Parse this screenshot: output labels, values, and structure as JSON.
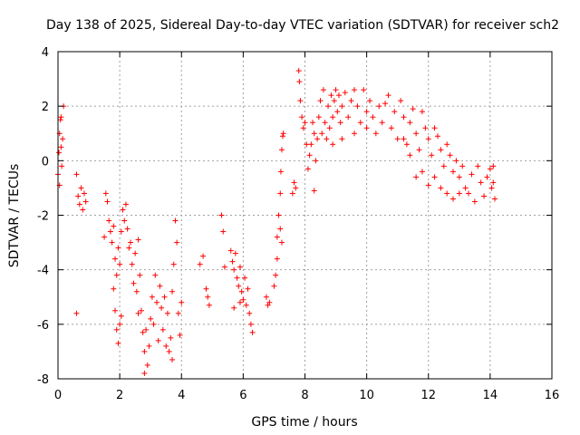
{
  "chart_data": {
    "type": "scatter",
    "title": "Day 138 of 2025, Sidereal Day-to-day VTEC variation (SDTVAR) for receiver sch2",
    "xlabel": "GPS time / hours",
    "ylabel": "SDTVAR / TECUs",
    "xlim": [
      0,
      16
    ],
    "ylim": [
      -8,
      4
    ],
    "xticks": [
      "0",
      "2",
      "4",
      "6",
      "8",
      "10",
      "12",
      "14",
      "16"
    ],
    "yticks": [
      "4",
      "2",
      "0",
      "-2",
      "-4",
      "-6",
      "-8"
    ],
    "grid": true,
    "marker": "+",
    "color": "#ff0000",
    "series": [
      {
        "name": "sch2",
        "points": [
          [
            0.0,
            -0.5
          ],
          [
            0.03,
            0.3
          ],
          [
            0.05,
            1.0
          ],
          [
            0.08,
            1.5
          ],
          [
            0.1,
            0.5
          ],
          [
            0.12,
            -0.2
          ],
          [
            0.15,
            0.8
          ],
          [
            0.18,
            2.0
          ],
          [
            0.05,
            -0.9
          ],
          [
            0.1,
            1.6
          ],
          [
            0.6,
            -0.5
          ],
          [
            0.65,
            -1.3
          ],
          [
            0.7,
            -1.6
          ],
          [
            0.75,
            -1.0
          ],
          [
            0.8,
            -1.8
          ],
          [
            0.85,
            -1.2
          ],
          [
            0.9,
            -1.5
          ],
          [
            0.6,
            -5.6
          ],
          [
            1.5,
            -2.8
          ],
          [
            1.55,
            -1.2
          ],
          [
            1.6,
            -1.5
          ],
          [
            1.65,
            -2.2
          ],
          [
            1.7,
            -2.6
          ],
          [
            1.75,
            -3.0
          ],
          [
            1.8,
            -2.4
          ],
          [
            1.85,
            -3.6
          ],
          [
            1.9,
            -4.2
          ],
          [
            1.95,
            -3.2
          ],
          [
            1.8,
            -4.7
          ],
          [
            1.85,
            -5.5
          ],
          [
            1.9,
            -6.2
          ],
          [
            1.95,
            -6.7
          ],
          [
            2.0,
            -6.0
          ],
          [
            2.05,
            -5.7
          ],
          [
            2.0,
            -3.8
          ],
          [
            2.05,
            -2.6
          ],
          [
            2.1,
            -1.8
          ],
          [
            2.15,
            -2.2
          ],
          [
            2.2,
            -1.6
          ],
          [
            2.25,
            -2.5
          ],
          [
            2.3,
            -3.2
          ],
          [
            2.35,
            -3.0
          ],
          [
            2.4,
            -3.8
          ],
          [
            2.45,
            -4.5
          ],
          [
            2.5,
            -3.4
          ],
          [
            2.55,
            -4.8
          ],
          [
            2.6,
            -5.6
          ],
          [
            2.65,
            -4.2
          ],
          [
            2.7,
            -5.5
          ],
          [
            2.75,
            -6.3
          ],
          [
            2.8,
            -7.0
          ],
          [
            2.85,
            -6.2
          ],
          [
            2.9,
            -7.5
          ],
          [
            2.95,
            -6.8
          ],
          [
            3.0,
            -5.8
          ],
          [
            3.05,
            -5.0
          ],
          [
            3.1,
            -6.0
          ],
          [
            3.15,
            -4.2
          ],
          [
            3.2,
            -5.2
          ],
          [
            3.25,
            -6.6
          ],
          [
            3.3,
            -4.6
          ],
          [
            3.35,
            -5.4
          ],
          [
            3.4,
            -6.2
          ],
          [
            3.45,
            -5.0
          ],
          [
            3.5,
            -6.8
          ],
          [
            3.55,
            -5.6
          ],
          [
            3.6,
            -7.0
          ],
          [
            3.65,
            -6.5
          ],
          [
            3.7,
            -4.8
          ],
          [
            3.75,
            -3.8
          ],
          [
            3.8,
            -2.2
          ],
          [
            3.85,
            -3.0
          ],
          [
            3.9,
            -5.6
          ],
          [
            3.95,
            -6.4
          ],
          [
            4.0,
            -5.2
          ],
          [
            2.8,
            -7.8
          ],
          [
            3.7,
            -7.3
          ],
          [
            2.6,
            -2.9
          ],
          [
            4.6,
            -3.8
          ],
          [
            4.7,
            -3.5
          ],
          [
            4.8,
            -4.7
          ],
          [
            4.85,
            -5.0
          ],
          [
            4.9,
            -5.3
          ],
          [
            5.3,
            -2.0
          ],
          [
            5.35,
            -2.6
          ],
          [
            5.4,
            -3.9
          ],
          [
            5.6,
            -3.3
          ],
          [
            5.65,
            -3.7
          ],
          [
            5.7,
            -4.0
          ],
          [
            5.75,
            -3.4
          ],
          [
            5.8,
            -4.3
          ],
          [
            5.85,
            -4.6
          ],
          [
            5.9,
            -3.9
          ],
          [
            5.95,
            -4.8
          ],
          [
            6.0,
            -5.1
          ],
          [
            6.05,
            -4.3
          ],
          [
            6.1,
            -5.3
          ],
          [
            6.15,
            -4.7
          ],
          [
            6.2,
            -5.6
          ],
          [
            6.25,
            -6.0
          ],
          [
            6.3,
            -6.3
          ],
          [
            5.7,
            -5.4
          ],
          [
            5.9,
            -5.2
          ],
          [
            6.75,
            -5.0
          ],
          [
            6.8,
            -5.3
          ],
          [
            6.85,
            -5.2
          ],
          [
            7.0,
            -4.6
          ],
          [
            7.05,
            -4.2
          ],
          [
            7.1,
            -3.6
          ],
          [
            7.1,
            -2.8
          ],
          [
            7.15,
            -2.0
          ],
          [
            7.2,
            -1.2
          ],
          [
            7.22,
            -0.4
          ],
          [
            7.25,
            0.4
          ],
          [
            7.28,
            0.9
          ],
          [
            7.3,
            1.0
          ],
          [
            7.2,
            -2.5
          ],
          [
            7.25,
            -3.0
          ],
          [
            7.6,
            -1.2
          ],
          [
            7.65,
            -0.8
          ],
          [
            7.7,
            -1.0
          ],
          [
            7.8,
            3.3
          ],
          [
            7.82,
            2.9
          ],
          [
            7.85,
            2.2
          ],
          [
            7.9,
            1.6
          ],
          [
            7.95,
            1.2
          ],
          [
            8.0,
            1.4
          ],
          [
            8.05,
            0.6
          ],
          [
            8.1,
            -0.3
          ],
          [
            8.15,
            0.2
          ],
          [
            8.2,
            0.6
          ],
          [
            8.25,
            1.4
          ],
          [
            8.3,
            1.0
          ],
          [
            8.35,
            0.0
          ],
          [
            8.4,
            0.8
          ],
          [
            8.45,
            1.6
          ],
          [
            8.5,
            2.2
          ],
          [
            8.55,
            1.0
          ],
          [
            8.6,
            2.6
          ],
          [
            8.65,
            1.4
          ],
          [
            8.7,
            0.8
          ],
          [
            8.75,
            2.0
          ],
          [
            8.8,
            1.2
          ],
          [
            8.85,
            2.4
          ],
          [
            8.9,
            1.6
          ],
          [
            8.95,
            2.2
          ],
          [
            9.0,
            2.6
          ],
          [
            9.05,
            1.8
          ],
          [
            9.1,
            2.4
          ],
          [
            9.15,
            1.4
          ],
          [
            9.2,
            2.0
          ],
          [
            9.3,
            2.5
          ],
          [
            9.4,
            1.6
          ],
          [
            9.5,
            2.2
          ],
          [
            9.6,
            2.6
          ],
          [
            9.7,
            2.0
          ],
          [
            9.8,
            1.4
          ],
          [
            9.9,
            2.6
          ],
          [
            10.0,
            1.8
          ],
          [
            10.1,
            2.2
          ],
          [
            10.2,
            1.6
          ],
          [
            10.3,
            1.0
          ],
          [
            10.4,
            2.0
          ],
          [
            10.5,
            1.4
          ],
          [
            10.6,
            2.1
          ],
          [
            10.7,
            2.4
          ],
          [
            10.8,
            1.2
          ],
          [
            10.9,
            1.8
          ],
          [
            11.0,
            0.8
          ],
          [
            11.1,
            2.2
          ],
          [
            11.2,
            1.6
          ],
          [
            11.3,
            0.6
          ],
          [
            11.4,
            1.4
          ],
          [
            11.5,
            1.9
          ],
          [
            11.6,
            1.0
          ],
          [
            11.7,
            0.4
          ],
          [
            11.8,
            1.8
          ],
          [
            11.9,
            1.2
          ],
          [
            12.0,
            0.8
          ],
          [
            12.1,
            0.2
          ],
          [
            12.2,
            1.2
          ],
          [
            12.3,
            0.9
          ],
          [
            12.4,
            0.4
          ],
          [
            12.5,
            -0.2
          ],
          [
            12.6,
            0.6
          ],
          [
            12.7,
            0.2
          ],
          [
            12.8,
            -0.4
          ],
          [
            12.9,
            0.0
          ],
          [
            13.0,
            -0.6
          ],
          [
            13.1,
            -0.2
          ],
          [
            13.2,
            -1.0
          ],
          [
            13.3,
            -1.2
          ],
          [
            13.4,
            -0.5
          ],
          [
            13.5,
            -1.5
          ],
          [
            13.6,
            -0.2
          ],
          [
            13.7,
            -0.8
          ],
          [
            13.8,
            -1.3
          ],
          [
            13.9,
            -0.6
          ],
          [
            14.0,
            -0.3
          ],
          [
            14.05,
            -1.0
          ],
          [
            14.1,
            -0.8
          ],
          [
            14.15,
            -1.4
          ],
          [
            14.1,
            -0.2
          ],
          [
            11.6,
            -0.6
          ],
          [
            11.8,
            -0.4
          ],
          [
            12.0,
            -0.9
          ],
          [
            12.2,
            -0.6
          ],
          [
            12.4,
            -1.0
          ],
          [
            12.6,
            -1.2
          ],
          [
            12.8,
            -1.4
          ],
          [
            13.0,
            -1.2
          ],
          [
            11.4,
            0.2
          ],
          [
            11.2,
            0.8
          ],
          [
            9.6,
            1.0
          ],
          [
            9.2,
            0.8
          ],
          [
            10.0,
            1.2
          ],
          [
            8.9,
            0.6
          ],
          [
            8.3,
            -1.1
          ]
        ]
      }
    ]
  }
}
